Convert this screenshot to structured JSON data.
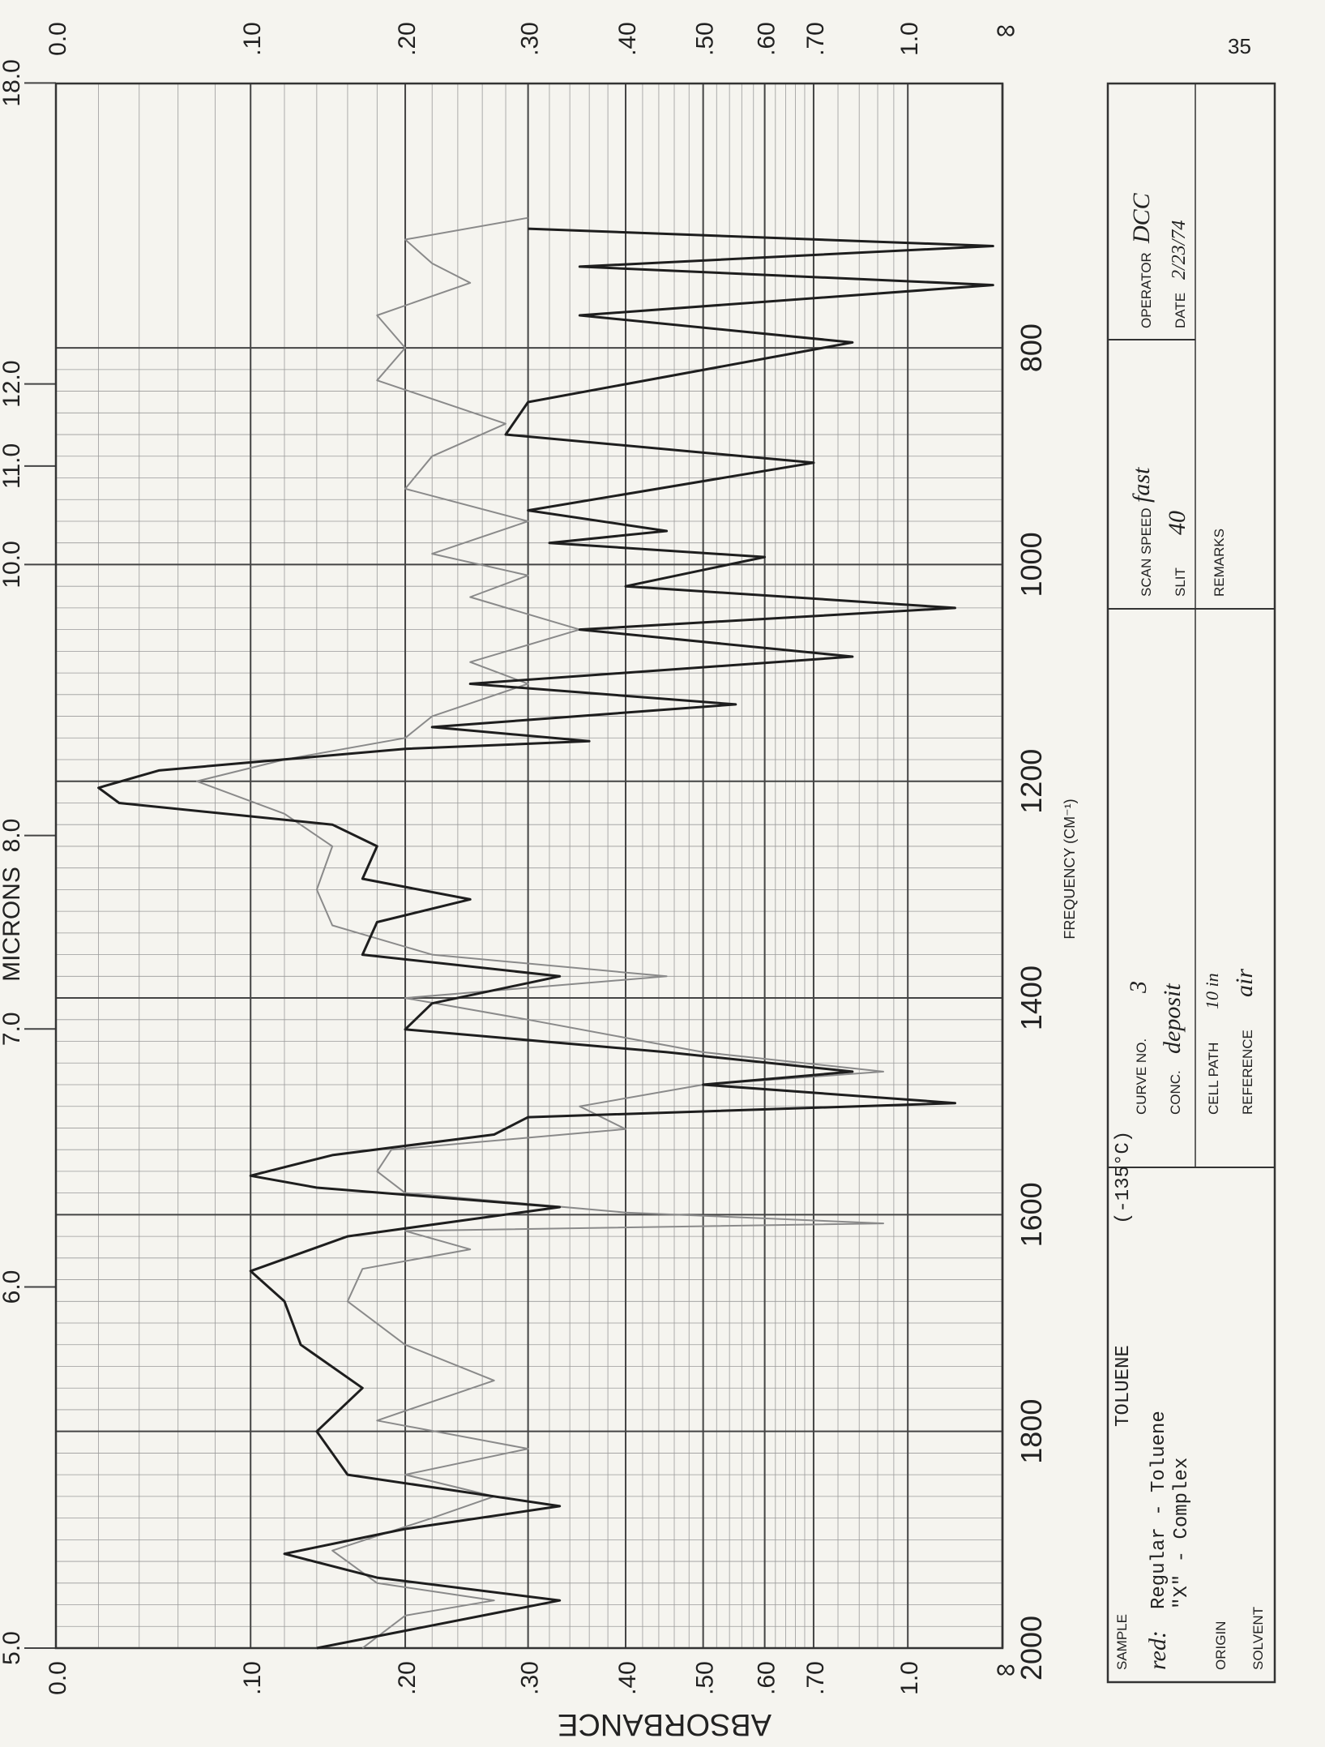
{
  "chart_data": {
    "type": "line",
    "x_label": "FREQUENCY (CM⁻¹)",
    "y_label": "ABSORBANCE",
    "x2_label": "MICRONS",
    "y_infinity_label": "∞",
    "page_number": "35",
    "xlim": [
      2000,
      556
    ],
    "xticks": [
      2000,
      1800,
      1600,
      1400,
      1200,
      1000,
      800
    ],
    "x2ticks": [
      {
        "value": 5.0,
        "label": "5.0"
      },
      {
        "value": 6.0,
        "label": "6.0"
      },
      {
        "value": 7.0,
        "label": "7.0"
      },
      {
        "value": 8.0,
        "label": "8.0"
      },
      {
        "value": 10.0,
        "label": "10.0"
      },
      {
        "value": 11.0,
        "label": "11.0"
      },
      {
        "value": 12.0,
        "label": "12.0"
      },
      {
        "value": 18.0,
        "label": "18.0"
      }
    ],
    "yticks": [
      {
        "value": 0,
        "label": "0.0"
      },
      {
        "value": 0.1,
        "label": ".10"
      },
      {
        "value": 0.2,
        "label": ".20"
      },
      {
        "value": 0.3,
        "label": ".30"
      },
      {
        "value": 0.4,
        "label": ".40"
      },
      {
        "value": 0.5,
        "label": ".50"
      },
      {
        "value": 0.6,
        "label": ".60"
      },
      {
        "value": 0.7,
        "label": ".70"
      },
      {
        "value": 1.0,
        "label": "1.0"
      }
    ],
    "y_scale": "absorbance",
    "grid": true,
    "series": [
      {
        "name": "Regular - Toluene",
        "color": "#8a8a8a",
        "x": [
          2000,
          1970,
          1956,
          1940,
          1910,
          1880,
          1860,
          1840,
          1816,
          1790,
          1753,
          1720,
          1680,
          1650,
          1632,
          1615,
          1608,
          1598,
          1580,
          1560,
          1540,
          1521,
          1500,
          1480,
          1468,
          1450,
          1420,
          1400,
          1380,
          1360,
          1333,
          1300,
          1260,
          1230,
          1200,
          1180,
          1160,
          1140,
          1110,
          1090,
          1060,
          1030,
          1010,
          990,
          960,
          930,
          900,
          870,
          830,
          800,
          770,
          740,
          722,
          700,
          680
        ],
        "values": [
          0.17,
          0.2,
          0.27,
          0.18,
          0.15,
          0.22,
          0.27,
          0.2,
          0.3,
          0.18,
          0.27,
          0.2,
          0.16,
          0.17,
          0.25,
          0.2,
          0.9,
          0.4,
          0.2,
          0.18,
          0.19,
          0.4,
          0.35,
          0.5,
          0.9,
          0.5,
          0.3,
          0.2,
          0.45,
          0.22,
          0.15,
          0.14,
          0.15,
          0.12,
          0.07,
          0.12,
          0.2,
          0.22,
          0.3,
          0.25,
          0.35,
          0.25,
          0.3,
          0.22,
          0.3,
          0.2,
          0.22,
          0.28,
          0.18,
          0.2,
          0.18,
          0.25,
          0.22,
          0.2,
          0.3
        ]
      },
      {
        "name": "\"X\" - Complex",
        "color": "#1e1e1e",
        "x": [
          2000,
          1956,
          1935,
          1913,
          1890,
          1869,
          1840,
          1800,
          1760,
          1720,
          1680,
          1652,
          1620,
          1593,
          1575,
          1564,
          1545,
          1526,
          1510,
          1497,
          1480,
          1468,
          1450,
          1429,
          1405,
          1380,
          1360,
          1330,
          1309,
          1290,
          1260,
          1240,
          1220,
          1206,
          1190,
          1170,
          1163,
          1150,
          1129,
          1110,
          1085,
          1060,
          1040,
          1020,
          993,
          980,
          969,
          950,
          906,
          880,
          850,
          795,
          770,
          742,
          725,
          706,
          690
        ],
        "values": [
          0.14,
          0.33,
          0.18,
          0.12,
          0.2,
          0.33,
          0.16,
          0.14,
          0.17,
          0.13,
          0.12,
          0.1,
          0.16,
          0.33,
          0.14,
          0.1,
          0.15,
          0.27,
          0.3,
          1.3,
          0.5,
          0.8,
          0.45,
          0.2,
          0.22,
          0.33,
          0.17,
          0.18,
          0.25,
          0.17,
          0.18,
          0.15,
          0.03,
          0.02,
          0.05,
          0.2,
          0.36,
          0.22,
          0.55,
          0.25,
          0.8,
          0.35,
          1.3,
          0.4,
          0.6,
          0.32,
          0.45,
          0.3,
          0.7,
          0.28,
          0.3,
          0.8,
          0.35,
          2.0,
          0.35,
          2.0,
          0.3
        ]
      }
    ]
  },
  "form": {
    "sample_label": "SAMPLE",
    "sample": "TOLUENE",
    "temperature": "(-135°C)",
    "legend_key": "red:",
    "origin_label": "ORIGIN",
    "solvent_label": "SOLVENT",
    "curve_no_label": "CURVE NO.",
    "curve_no": "3",
    "conc_label": "CONC.",
    "conc": "deposit",
    "cell_path_label": "CELL PATH",
    "cell_path": "10 in",
    "reference_label": "REFERENCE",
    "reference": "air",
    "scan_speed_label": "SCAN SPEED",
    "scan_speed": "fast",
    "slit_label": "SLIT",
    "slit": "40",
    "remarks_label": "REMARKS",
    "operator_label": "OPERATOR",
    "operator": "DCC",
    "date_label": "DATE",
    "date": "2/23/74"
  }
}
